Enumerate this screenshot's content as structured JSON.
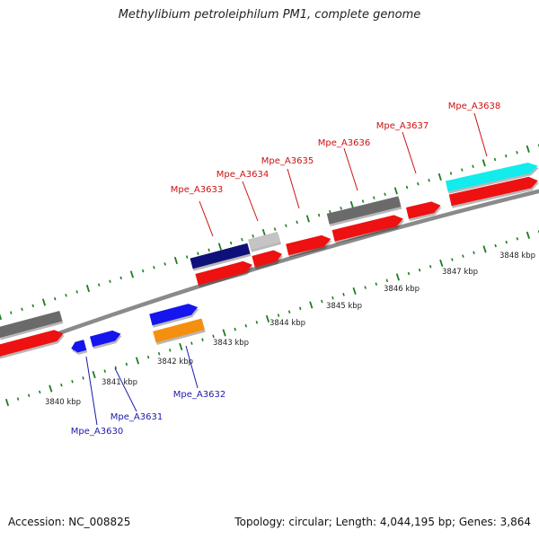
{
  "title": "Methylibium petroleiphilum PM1, complete genome",
  "accession": "Accession: NC_008825",
  "summary": "Topology: circular; Length: 4,044,195 bp; Genes: 3,864",
  "colors": {
    "backbone": "#8a8a8a",
    "tick": "#1e7d1e",
    "forward_label": "#cc1111",
    "reverse_label": "#1a1aaa",
    "red": "#ee1111",
    "blue": "#1515ee",
    "navy": "#10107a",
    "gray": "#6a6a6a",
    "lightgray": "#c4c4c4",
    "orange": "#f58f10",
    "cyan": "#12ecec"
  },
  "scale": {
    "unit": "kbp",
    "ticks": [
      {
        "label": "3840 kbp",
        "kbp": 3840
      },
      {
        "label": "3841 kbp",
        "kbp": 3841
      },
      {
        "label": "3842 kbp",
        "kbp": 3842
      },
      {
        "label": "3843 kbp",
        "kbp": 3843
      },
      {
        "label": "3844 kbp",
        "kbp": 3844
      },
      {
        "label": "3845 kbp",
        "kbp": 3845
      },
      {
        "label": "3846 kbp",
        "kbp": 3846
      },
      {
        "label": "3847 kbp",
        "kbp": 3847
      },
      {
        "label": "3848 kbp",
        "kbp": 3848
      }
    ]
  },
  "gene_labels": {
    "forward": [
      {
        "name": "Mpe_A3633"
      },
      {
        "name": "Mpe_A3634"
      },
      {
        "name": "Mpe_A3635"
      },
      {
        "name": "Mpe_A3636"
      },
      {
        "name": "Mpe_A3637"
      },
      {
        "name": "Mpe_A3638"
      }
    ],
    "reverse": [
      {
        "name": "Mpe_A3632"
      },
      {
        "name": "Mpe_A3631"
      },
      {
        "name": "Mpe_A3630"
      }
    ]
  }
}
